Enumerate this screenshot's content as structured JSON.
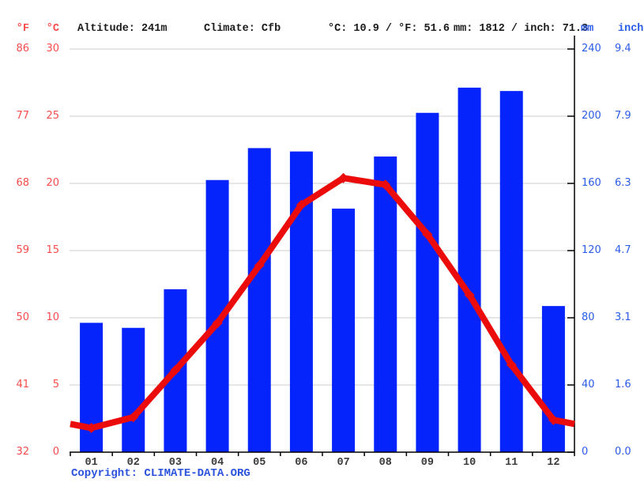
{
  "header": {
    "temp_f_unit": "°F",
    "temp_c_unit": "°C",
    "altitude": "Altitude: 241m",
    "climate": "Climate: Cfb",
    "temp_summary": "°C: 10.9 / °F: 51.6",
    "precip_summary": "mm: 1812 / inch: 71.3",
    "precip_mm_unit": "mm",
    "precip_inch_unit": "inch"
  },
  "footer": {
    "copyright": "Copyright: CLIMATE-DATA.ORG"
  },
  "chart_data": {
    "type": "bar+line",
    "title": "",
    "categories": [
      "01",
      "02",
      "03",
      "04",
      "05",
      "06",
      "07",
      "08",
      "09",
      "10",
      "11",
      "12"
    ],
    "series": [
      {
        "name": "precipitation",
        "type": "bar",
        "unit": "mm",
        "values": [
          77,
          74,
          97,
          162,
          181,
          179,
          145,
          176,
          202,
          217,
          215,
          87
        ]
      },
      {
        "name": "temperature",
        "type": "line",
        "unit": "°C",
        "values": [
          1.8,
          2.6,
          6.1,
          9.6,
          13.9,
          18.4,
          20.4,
          19.9,
          16.2,
          11.7,
          6.5,
          2.4
        ]
      }
    ],
    "left_axis": {
      "f_ticks": [
        "86",
        "77",
        "68",
        "59",
        "50",
        "41",
        "32"
      ],
      "c_ticks": [
        "30",
        "25",
        "20",
        "15",
        "10",
        "5",
        "0"
      ],
      "c_values": [
        30,
        25,
        20,
        15,
        10,
        5,
        0
      ],
      "range_c": [
        0,
        30
      ]
    },
    "right_axis": {
      "mm_ticks": [
        "240",
        "200",
        "160",
        "120",
        "80",
        "40",
        "0"
      ],
      "inch_ticks": [
        "9.4",
        "7.9",
        "6.3",
        "4.7",
        "3.1",
        "1.6",
        "0.0"
      ],
      "range_mm": [
        0,
        240
      ]
    },
    "grid": true,
    "legend": "none",
    "annual_mean_temp_c": 10.9,
    "annual_precip_mm": 1812,
    "colors": {
      "bar_blue": "#0524fb",
      "line_red": "#ec0b0b",
      "left_axis_text": "#f94b4b",
      "right_axis_text": "#2b5ce8",
      "gridline": "#cccccc",
      "axis_black": "#000000",
      "month_text": "#3a3a3a"
    }
  }
}
